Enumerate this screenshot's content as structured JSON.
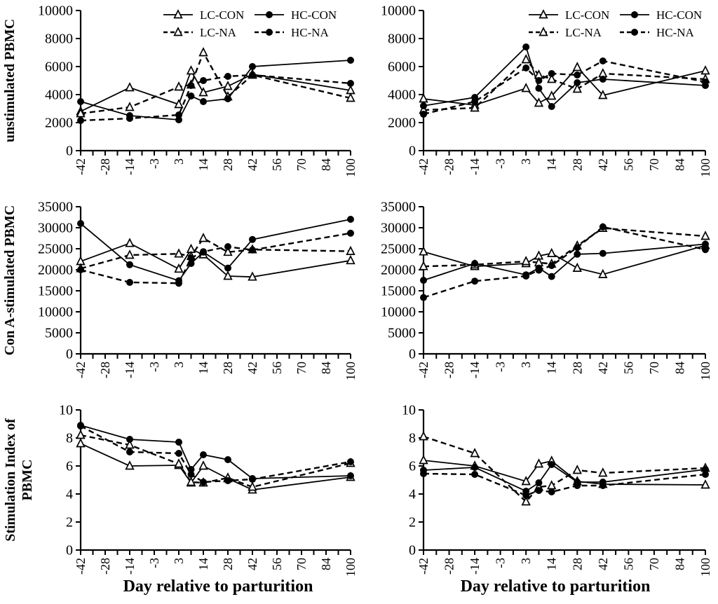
{
  "figure": {
    "background": "#ffffff",
    "foreground": "#000000",
    "x_axis_label": "Day relative to parturition",
    "x_tick_labels": [
      "-42",
      "-28",
      "-14",
      "-3",
      "3",
      "14",
      "28",
      "42",
      "56",
      "70",
      "84",
      "100"
    ],
    "days": [
      -42,
      -14,
      3,
      7,
      14,
      28,
      42,
      100
    ],
    "legend": {
      "entries": [
        {
          "label": "LC-CON",
          "marker": "triangle-open",
          "line": "solid"
        },
        {
          "label": "LC-NA",
          "marker": "triangle-open",
          "line": "dashed"
        },
        {
          "label": "HC-CON",
          "marker": "circle-filled",
          "line": "solid"
        },
        {
          "label": "HC-NA",
          "marker": "circle-filled",
          "line": "dashed"
        }
      ]
    }
  },
  "chart_data": [
    {
      "type": "line",
      "position": "top-left",
      "row": 0,
      "col": 0,
      "ylabel": "unstimulated PBMC",
      "ylim": [
        0,
        10000
      ],
      "ytick_labels": [
        "0",
        "2000",
        "4000",
        "6000",
        "8000",
        "10000"
      ],
      "legend": true,
      "x": [
        -42,
        -14,
        3,
        7,
        14,
        28,
        42,
        100
      ],
      "series": [
        {
          "name": "LC-CON",
          "marker": "triangle-open",
          "line": "solid",
          "values": [
            2800,
            4500,
            3300,
            5700,
            4150,
            4600,
            5450,
            4300
          ]
        },
        {
          "name": "LC-NA",
          "marker": "triangle-open",
          "line": "dashed",
          "values": [
            2650,
            3100,
            4550,
            4700,
            7000,
            3850,
            5400,
            3750
          ]
        },
        {
          "name": "HC-CON",
          "marker": "circle-filled",
          "line": "solid",
          "values": [
            3500,
            2500,
            2200,
            3900,
            3500,
            3700,
            6000,
            6450
          ]
        },
        {
          "name": "HC-NA",
          "marker": "circle-filled",
          "line": "dashed",
          "values": [
            2150,
            2300,
            2550,
            4650,
            5000,
            5300,
            5400,
            4800
          ]
        }
      ]
    },
    {
      "type": "line",
      "position": "top-right",
      "row": 0,
      "col": 1,
      "ylabel": "",
      "ylim": [
        0,
        10000
      ],
      "ytick_labels": [
        "0",
        "2000",
        "4000",
        "6000",
        "8000",
        "10000"
      ],
      "legend": true,
      "x": [
        -42,
        -14,
        3,
        7,
        14,
        28,
        42,
        100
      ],
      "series": [
        {
          "name": "LC-CON",
          "marker": "triangle-open",
          "line": "solid",
          "values": [
            3700,
            3250,
            4450,
            3400,
            3900,
            5950,
            3950,
            5700
          ]
        },
        {
          "name": "LC-NA",
          "marker": "triangle-open",
          "line": "dashed",
          "values": [
            2900,
            3050,
            6500,
            5400,
            5100,
            4400,
            5500,
            5100
          ]
        },
        {
          "name": "HC-CON",
          "marker": "circle-filled",
          "line": "solid",
          "values": [
            3200,
            3800,
            7400,
            4450,
            3150,
            4850,
            5100,
            4650
          ]
        },
        {
          "name": "HC-NA",
          "marker": "circle-filled",
          "line": "dashed",
          "values": [
            2600,
            3500,
            5900,
            5000,
            5500,
            5400,
            6400,
            4900
          ]
        }
      ]
    },
    {
      "type": "line",
      "position": "middle-left",
      "row": 1,
      "col": 0,
      "ylabel": "Con A-stimulated PBMC",
      "ylim": [
        0,
        35000
      ],
      "ytick_labels": [
        "0",
        "5000",
        "10000",
        "15000",
        "20000",
        "25000",
        "30000",
        "35000"
      ],
      "legend": false,
      "x": [
        -42,
        -14,
        3,
        7,
        14,
        28,
        42,
        100
      ],
      "series": [
        {
          "name": "LC-CON",
          "marker": "triangle-open",
          "line": "solid",
          "values": [
            22000,
            26300,
            20200,
            24900,
            23600,
            18500,
            18300,
            22200
          ]
        },
        {
          "name": "LC-NA",
          "marker": "triangle-open",
          "line": "dashed",
          "values": [
            20300,
            23500,
            23800,
            23200,
            27500,
            24200,
            24800,
            24400
          ]
        },
        {
          "name": "HC-CON",
          "marker": "circle-filled",
          "line": "solid",
          "values": [
            31000,
            21200,
            17400,
            21500,
            24200,
            20400,
            27200,
            32000
          ]
        },
        {
          "name": "HC-NA",
          "marker": "circle-filled",
          "line": "dashed",
          "values": [
            20000,
            17000,
            16800,
            22800,
            24300,
            25500,
            24700,
            28700
          ]
        }
      ]
    },
    {
      "type": "line",
      "position": "middle-right",
      "row": 1,
      "col": 1,
      "ylabel": "",
      "ylim": [
        0,
        35000
      ],
      "ytick_labels": [
        "0",
        "5000",
        "10000",
        "15000",
        "20000",
        "25000",
        "30000",
        "35000"
      ],
      "legend": false,
      "x": [
        -42,
        -14,
        3,
        7,
        14,
        28,
        42,
        100
      ],
      "series": [
        {
          "name": "LC-CON",
          "marker": "triangle-open",
          "line": "solid",
          "values": [
            24300,
            20800,
            21500,
            23300,
            23900,
            20400,
            18900,
            25800
          ]
        },
        {
          "name": "LC-NA",
          "marker": "triangle-open",
          "line": "dashed",
          "values": [
            20800,
            21200,
            22000,
            21700,
            21400,
            25700,
            29900,
            28000
          ]
        },
        {
          "name": "HC-CON",
          "marker": "circle-filled",
          "line": "solid",
          "values": [
            17500,
            21500,
            18800,
            20400,
            18400,
            23700,
            23900,
            26100
          ]
        },
        {
          "name": "HC-NA",
          "marker": "circle-filled",
          "line": "dashed",
          "values": [
            13400,
            17300,
            18500,
            19900,
            21000,
            25300,
            30200,
            24800
          ]
        }
      ]
    },
    {
      "type": "line",
      "position": "bottom-left",
      "row": 2,
      "col": 0,
      "ylabel": "Stimulation Index of PBMC",
      "ylabel_lines": [
        "Stimulation Index of",
        "PBMC"
      ],
      "xlabel": "Day relative to parturition",
      "ylim": [
        0,
        10
      ],
      "ytick_labels": [
        "0",
        "2",
        "4",
        "6",
        "8",
        "10"
      ],
      "legend": false,
      "x": [
        -42,
        -14,
        3,
        7,
        14,
        28,
        42,
        100
      ],
      "series": [
        {
          "name": "LC-CON",
          "marker": "triangle-open",
          "line": "solid",
          "values": [
            7.6,
            6.0,
            6.05,
            4.8,
            6.0,
            5.1,
            4.3,
            5.2
          ]
        },
        {
          "name": "LC-NA",
          "marker": "triangle-open",
          "line": "dashed",
          "values": [
            8.2,
            7.5,
            6.15,
            4.85,
            4.8,
            5.15,
            4.5,
            6.2
          ]
        },
        {
          "name": "HC-CON",
          "marker": "circle-filled",
          "line": "solid",
          "values": [
            8.9,
            7.9,
            7.7,
            5.75,
            6.8,
            6.45,
            5.1,
            5.3
          ]
        },
        {
          "name": "HC-NA",
          "marker": "circle-filled",
          "line": "dashed",
          "values": [
            8.85,
            7.0,
            6.9,
            5.4,
            4.85,
            4.95,
            5.05,
            6.3
          ]
        }
      ]
    },
    {
      "type": "line",
      "position": "bottom-right",
      "row": 2,
      "col": 1,
      "ylabel": "",
      "xlabel": "Day relative to parturition",
      "ylim": [
        0,
        10
      ],
      "ytick_labels": [
        "0",
        "2",
        "4",
        "6",
        "8",
        "10"
      ],
      "legend": false,
      "x": [
        -42,
        -14,
        3,
        7,
        14,
        28,
        42,
        100
      ],
      "series": [
        {
          "name": "LC-CON",
          "marker": "triangle-open",
          "line": "solid",
          "values": [
            6.4,
            6.0,
            4.9,
            6.15,
            6.35,
            4.9,
            4.7,
            4.65
          ]
        },
        {
          "name": "LC-NA",
          "marker": "triangle-open",
          "line": "dashed",
          "values": [
            8.1,
            6.9,
            3.45,
            4.5,
            4.6,
            5.7,
            5.5,
            5.85
          ]
        },
        {
          "name": "HC-CON",
          "marker": "circle-filled",
          "line": "solid",
          "values": [
            5.7,
            5.9,
            4.2,
            4.8,
            6.1,
            4.85,
            4.85,
            5.75
          ]
        },
        {
          "name": "HC-NA",
          "marker": "circle-filled",
          "line": "dashed",
          "values": [
            5.45,
            5.4,
            3.9,
            4.25,
            4.15,
            4.6,
            4.6,
            5.4
          ]
        }
      ]
    }
  ]
}
